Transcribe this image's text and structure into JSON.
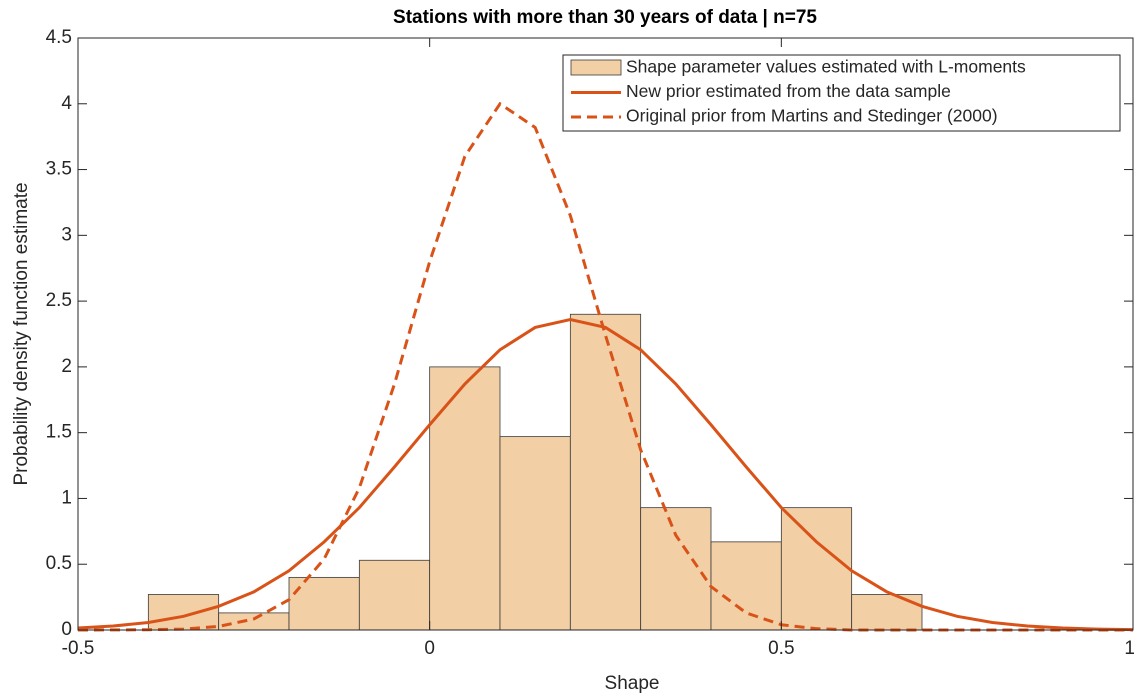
{
  "chart_data": {
    "type": "histogram",
    "title": "Stations with more than 30 years of data | n=75",
    "x_label": "Shape",
    "y_label": "Probability density function estimate",
    "name": "Shape parameter values estimated with L-moments",
    "color": "#f2cfa5",
    "bins": [
      -0.4,
      -0.3,
      -0.2,
      -0.1,
      0,
      0.1,
      0.2,
      0.3,
      0.4,
      0.5,
      0.6,
      0.7
    ],
    "values": [
      0.27,
      0.13,
      0.4,
      0.53,
      2,
      1.47,
      2.4,
      0.93,
      0.67,
      0.93,
      0.27
    ],
    "lines": [
      {
        "name": "New prior estimated from the data sample",
        "color": "#d95319",
        "dash": false,
        "x": [
          -0.5,
          -0.45,
          -0.4,
          -0.35,
          -0.3,
          -0.25,
          -0.2,
          -0.15,
          -0.1,
          -0.05,
          0,
          0.05,
          0.1,
          0.15,
          0.2,
          0.25,
          0.3,
          0.35,
          0.4,
          0.45,
          0.5,
          0.55,
          0.6,
          0.65,
          0.7,
          0.75,
          0.8,
          0.85,
          0.9,
          0.95,
          1
        ],
        "values": [
          0.015,
          0.03,
          0.057,
          0.104,
          0.18,
          0.29,
          0.45,
          0.67,
          0.93,
          1.24,
          1.56,
          1.87,
          2.13,
          2.3,
          2.36,
          2.3,
          2.13,
          1.87,
          1.56,
          1.24,
          0.93,
          0.67,
          0.45,
          0.29,
          0.18,
          0.104,
          0.057,
          0.03,
          0.015,
          0.007,
          0.003
        ]
      },
      {
        "name": "Original prior from Martins and Stedinger (2000)",
        "color": "#d95319",
        "dash": true,
        "x": [
          -0.5,
          -0.4,
          -0.35,
          -0.3,
          -0.25,
          -0.2,
          -0.15,
          -0.1,
          -0.05,
          0,
          0.05,
          0.1,
          0.15,
          0.2,
          0.25,
          0.3,
          0.35,
          0.4,
          0.45,
          0.5,
          0.55,
          0.6,
          1
        ],
        "values": [
          0,
          0.002,
          0.007,
          0.027,
          0.084,
          0.23,
          0.54,
          1.08,
          1.87,
          2.8,
          3.6,
          4,
          3.82,
          3.15,
          2.24,
          1.37,
          0.72,
          0.33,
          0.13,
          0.04,
          0.01,
          0,
          0
        ]
      }
    ],
    "xlim": [
      -0.5,
      1
    ],
    "ylim": [
      0,
      4.5
    ],
    "xticks": [
      -0.5,
      0,
      0.5,
      1
    ],
    "yticks": [
      0,
      0.5,
      1,
      1.5,
      2,
      2.5,
      3,
      3.5,
      4,
      4.5
    ],
    "legend": "upper right"
  }
}
